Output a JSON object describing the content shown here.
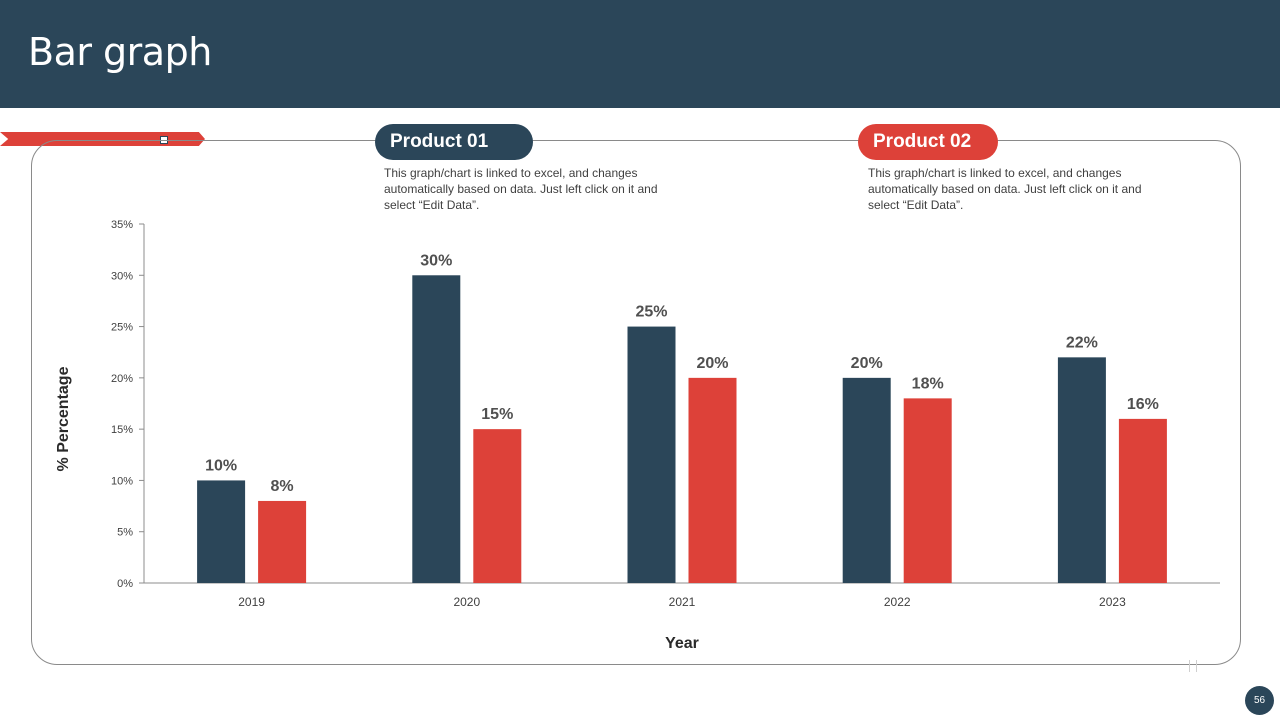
{
  "header": {
    "title": "Bar graph"
  },
  "legend": {
    "product1": {
      "label": "Product 01",
      "description": "This graph/chart is linked to excel, and changes automatically based on data. Just left click on it and select “Edit Data”."
    },
    "product2": {
      "label": "Product 02",
      "description": "This graph/chart is linked to excel, and changes automatically based on data. Just left click on it and select “Edit Data”."
    }
  },
  "page_number": "56",
  "colors": {
    "primary": "#2b4659",
    "accent": "#dd4139"
  },
  "chart_data": {
    "type": "bar",
    "xlabel": "Year",
    "ylabel": "% Percentage",
    "categories": [
      "2019",
      "2020",
      "2021",
      "2022",
      "2023"
    ],
    "ylim": [
      0,
      35
    ],
    "yticks": [
      "0%",
      "5%",
      "10%",
      "15%",
      "20%",
      "25%",
      "30%",
      "35%"
    ],
    "grid": false,
    "series": [
      {
        "name": "Product 01",
        "color": "#2b4659",
        "values": [
          10,
          30,
          25,
          20,
          22
        ],
        "labels": [
          "10%",
          "30%",
          "25%",
          "20%",
          "22%"
        ]
      },
      {
        "name": "Product 02",
        "color": "#dd4139",
        "values": [
          8,
          15,
          20,
          18,
          16
        ],
        "labels": [
          "8%",
          "15%",
          "20%",
          "18%",
          "16%"
        ]
      }
    ]
  }
}
